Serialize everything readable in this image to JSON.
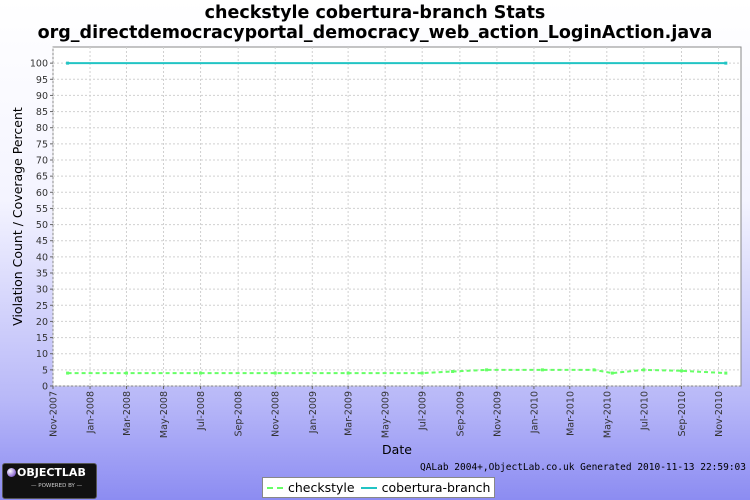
{
  "chart_data": {
    "type": "line",
    "title": "checkstyle cobertura-branch  Stats",
    "subtitle": "org_directdemocracyportal_democracy_web_action_LoginAction.java",
    "xlabel": "Date",
    "ylabel": "Violation Count / Coverage Percent",
    "ylim": [
      0,
      105
    ],
    "yticks": [
      0,
      5,
      10,
      15,
      20,
      25,
      30,
      35,
      40,
      45,
      50,
      55,
      60,
      65,
      70,
      75,
      80,
      85,
      90,
      95,
      100
    ],
    "xlim": [
      "2007-11-01",
      "2010-12-08"
    ],
    "xticks": [
      {
        "date": "2007-11-01",
        "label": "Nov-2007"
      },
      {
        "date": "2008-01-01",
        "label": "Jan-2008"
      },
      {
        "date": "2008-03-01",
        "label": "Mar-2008"
      },
      {
        "date": "2008-05-01",
        "label": "May-2008"
      },
      {
        "date": "2008-07-01",
        "label": "Jul-2008"
      },
      {
        "date": "2008-09-01",
        "label": "Sep-2008"
      },
      {
        "date": "2008-11-01",
        "label": "Nov-2008"
      },
      {
        "date": "2009-01-01",
        "label": "Jan-2009"
      },
      {
        "date": "2009-03-01",
        "label": "Mar-2009"
      },
      {
        "date": "2009-05-01",
        "label": "May-2009"
      },
      {
        "date": "2009-07-01",
        "label": "Jul-2009"
      },
      {
        "date": "2009-09-01",
        "label": "Sep-2009"
      },
      {
        "date": "2009-11-01",
        "label": "Nov-2009"
      },
      {
        "date": "2010-01-01",
        "label": "Jan-2010"
      },
      {
        "date": "2010-03-01",
        "label": "Mar-2010"
      },
      {
        "date": "2010-05-01",
        "label": "May-2010"
      },
      {
        "date": "2010-07-01",
        "label": "Jul-2010"
      },
      {
        "date": "2010-09-01",
        "label": "Sep-2010"
      },
      {
        "date": "2010-11-01",
        "label": "Nov-2010"
      }
    ],
    "grid": true,
    "legend_position": "bottom",
    "series": [
      {
        "name": "checkstyle",
        "color": "#66ff66",
        "style": "dashed",
        "points": [
          {
            "x": "2007-11-25",
            "y": 4
          },
          {
            "x": "2008-03-01",
            "y": 4
          },
          {
            "x": "2008-07-01",
            "y": 4
          },
          {
            "x": "2008-11-01",
            "y": 4
          },
          {
            "x": "2009-03-01",
            "y": 4
          },
          {
            "x": "2009-07-01",
            "y": 4
          },
          {
            "x": "2009-08-20",
            "y": 4.5
          },
          {
            "x": "2009-10-15",
            "y": 5
          },
          {
            "x": "2010-01-15",
            "y": 5
          },
          {
            "x": "2010-04-10",
            "y": 5
          },
          {
            "x": "2010-05-10",
            "y": 4
          },
          {
            "x": "2010-07-01",
            "y": 5
          },
          {
            "x": "2010-09-01",
            "y": 4.7
          },
          {
            "x": "2010-11-13",
            "y": 4
          }
        ]
      },
      {
        "name": "cobertura-branch",
        "color": "#22c4c4",
        "style": "solid",
        "points": [
          {
            "x": "2007-11-25",
            "y": 100
          },
          {
            "x": "2010-11-13",
            "y": 100
          }
        ]
      }
    ]
  },
  "footer": {
    "generated_text": "QALab 2004+,ObjectLab.co.uk Generated 2010-11-13 22:59:03",
    "logo_text": "OBJECTLAB",
    "logo_sub": "— POWERED BY —"
  }
}
